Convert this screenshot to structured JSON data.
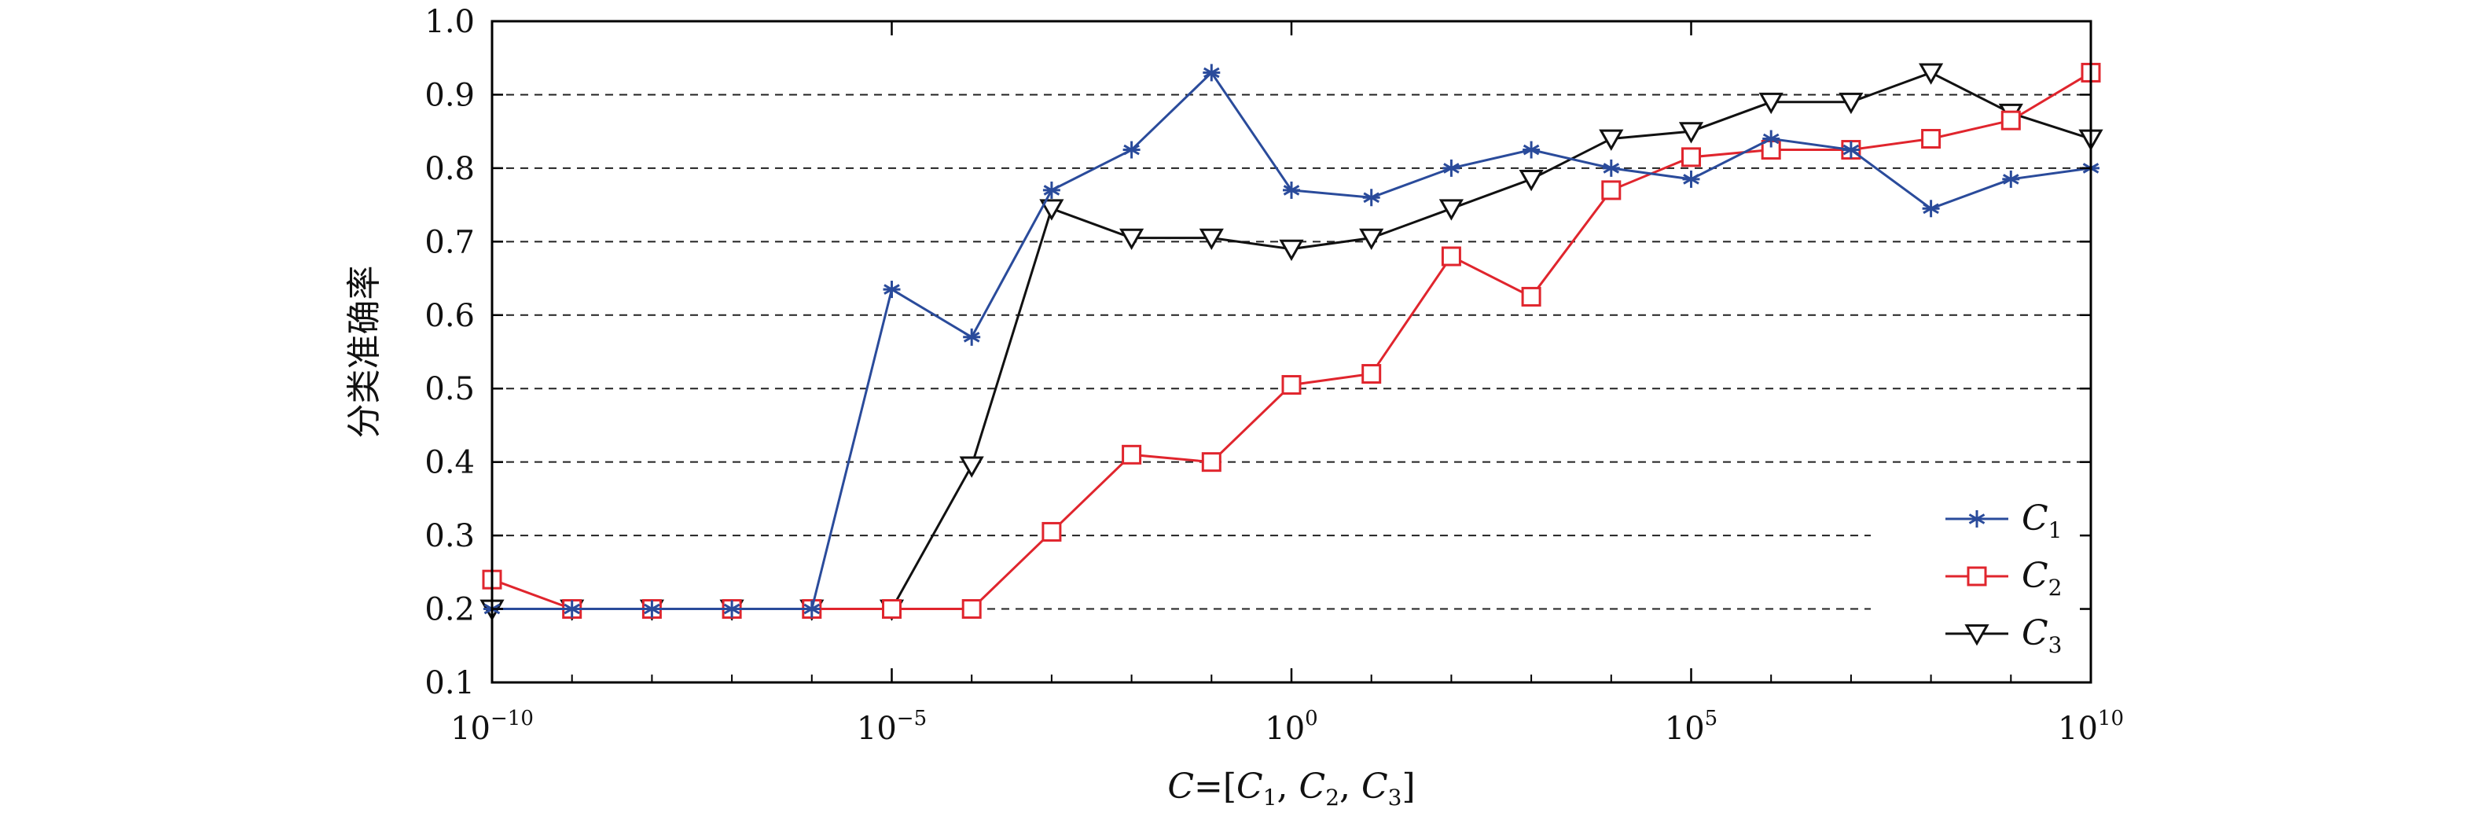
{
  "chart_data": {
    "type": "line",
    "xscale": "log",
    "x": [
      1e-10,
      1e-09,
      1e-08,
      1e-07,
      1e-06,
      1e-05,
      0.0001,
      0.001,
      0.01,
      0.1,
      1.0,
      10.0,
      100.0,
      1000.0,
      10000.0,
      100000.0,
      1000000.0,
      10000000.0,
      100000000.0,
      1000000000.0,
      10000000000.0
    ],
    "xlim": [
      1e-10,
      10000000000.0
    ],
    "ylim": [
      0.1,
      1.0
    ],
    "x_ticks": [
      {
        "base": "10",
        "exp": "−10",
        "value": 1e-10
      },
      {
        "base": "10",
        "exp": "−5",
        "value": 1e-05
      },
      {
        "base": "10",
        "exp": "0",
        "value": 1
      },
      {
        "base": "10",
        "exp": "5",
        "value": 100000.0
      },
      {
        "base": "10",
        "exp": "10",
        "value": 10000000000.0
      }
    ],
    "y_ticks": [
      "0.1",
      "0.2",
      "0.3",
      "0.4",
      "0.5",
      "0.6",
      "0.7",
      "0.8",
      "0.9",
      "1.0"
    ],
    "ylabel": "分类准确率",
    "xlabel": {
      "C": "C",
      "eq": "=[",
      "C1": "C",
      "s1": "1",
      "sep1": ", ",
      "C2": "C",
      "s2": "2",
      "sep2": ", ",
      "C3": "C",
      "s3": "3",
      "close": "]"
    },
    "grid": "horizontal dashed",
    "legend_position": "bottom-right",
    "series": [
      {
        "name": "C",
        "subscript": "1",
        "color": "#2a4b9b",
        "marker": "asterisk",
        "values": [
          0.2,
          0.2,
          0.2,
          0.2,
          0.2,
          0.635,
          0.57,
          0.77,
          0.825,
          0.93,
          0.77,
          0.76,
          0.8,
          0.825,
          0.8,
          0.785,
          0.84,
          0.825,
          0.745,
          0.785,
          0.8
        ]
      },
      {
        "name": "C",
        "subscript": "2",
        "color": "#e0252d",
        "marker": "square",
        "values": [
          0.24,
          0.2,
          0.2,
          0.2,
          0.2,
          0.2,
          0.2,
          0.305,
          0.41,
          0.4,
          0.505,
          0.52,
          0.68,
          0.625,
          0.77,
          0.815,
          0.825,
          0.825,
          0.84,
          0.865,
          0.93
        ]
      },
      {
        "name": "C",
        "subscript": "3",
        "color": "#111111",
        "marker": "triangle-down",
        "values": [
          0.2,
          0.2,
          0.2,
          0.2,
          0.2,
          0.2,
          0.395,
          0.745,
          0.705,
          0.705,
          0.69,
          0.705,
          0.745,
          0.785,
          0.84,
          0.85,
          0.89,
          0.89,
          0.93,
          0.875,
          0.84
        ]
      }
    ]
  }
}
